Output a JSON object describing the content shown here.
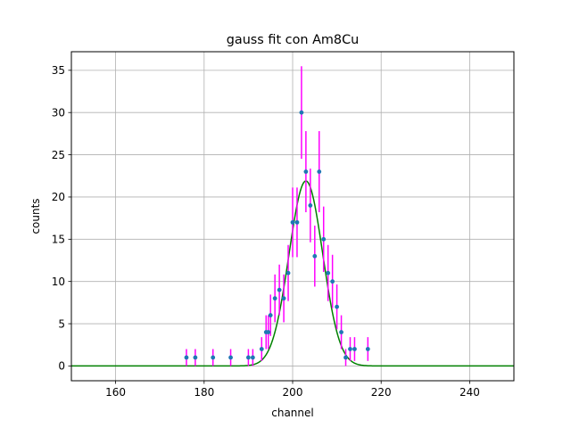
{
  "chart_data": {
    "type": "scatter",
    "title": "gauss fit con Am8Cu",
    "xlabel": "channel",
    "ylabel": "counts",
    "xlim": [
      150,
      250
    ],
    "ylim": [
      -1.75,
      37.2
    ],
    "xticks": [
      160,
      180,
      200,
      220,
      240
    ],
    "yticks": [
      0,
      5,
      10,
      15,
      20,
      25,
      30,
      35
    ],
    "grid": true,
    "series": [
      {
        "kind": "errorbar-points",
        "x": [
          176,
          178,
          182,
          186,
          190,
          191,
          193,
          194,
          194.5,
          195,
          196,
          197,
          198,
          199,
          200,
          201,
          202,
          203,
          204,
          205,
          206,
          207,
          208,
          209,
          210,
          211,
          212,
          213,
          214,
          217
        ],
        "y": [
          1,
          1,
          1,
          1,
          1,
          1,
          2,
          4,
          4,
          6,
          8,
          9,
          8,
          11,
          17,
          17,
          30,
          23,
          19,
          13,
          23,
          15,
          11,
          10,
          7,
          4,
          1,
          2,
          2,
          2
        ],
        "yerr": [
          1,
          1,
          1,
          1,
          1,
          1,
          1.41,
          2,
          2,
          2.45,
          2.83,
          3,
          2.83,
          3.32,
          4.12,
          4.12,
          5.48,
          4.8,
          4.36,
          3.61,
          4.8,
          3.87,
          3.32,
          3.16,
          2.65,
          2,
          1,
          1.41,
          1.41,
          1.41
        ],
        "marker_color": "#1f77b4",
        "errorbar_color": "#ff00ff"
      },
      {
        "kind": "fit-line",
        "model": "gaussian",
        "amplitude": 21.9,
        "mean": 203,
        "sigma": 3.8,
        "x_range": [
          150,
          250
        ],
        "color": "#008000"
      }
    ]
  }
}
